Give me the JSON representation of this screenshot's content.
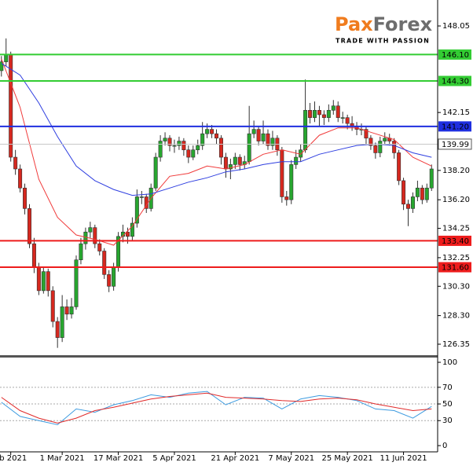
{
  "logo": {
    "brand": [
      "Pax",
      "Forex"
    ],
    "tagline": "TRADE WITH PASSION"
  },
  "chart_data": [
    {
      "type": "candlestick",
      "xlim": [
        -0.3,
        93.3
      ],
      "ylim": [
        125.6,
        149.82
      ],
      "yticks": [
        148.05,
        142.15,
        {
          "value": 138.2,
          "label": "138.20"
        },
        {
          "value": 136.2,
          "label": "136.20"
        },
        134.25,
        132.25,
        {
          "value": 130.3,
          "label": "130.30"
        },
        {
          "value": 128.3,
          "label": "128.30"
        },
        126.35
      ],
      "up_color": "#27a62f",
      "down_color": "#d6281f",
      "open": [
        145.0,
        145.6,
        146.1,
        139.1,
        138.3,
        137.0,
        135.6,
        133.2,
        131.6,
        130.0,
        131.3,
        130.0,
        127.9,
        126.8,
        128.9,
        128.4,
        128.9,
        132.1,
        133.2,
        134.0,
        134.3,
        133.2,
        132.7,
        131.1,
        130.3,
        131.6,
        133.7,
        134.0,
        133.7,
        134.6,
        136.4,
        136.4,
        135.6,
        137.0,
        139.1,
        140.2,
        140.4,
        139.9,
        139.9,
        140.2,
        139.6,
        139.1,
        139.6,
        139.9,
        140.7,
        141.0,
        140.7,
        140.4,
        139.1,
        138.3,
        138.6,
        139.1,
        138.6,
        138.8,
        140.7,
        141.0,
        140.2,
        140.7,
        139.9,
        140.4,
        139.6,
        136.4,
        136.2,
        138.6,
        139.1,
        139.6,
        142.3,
        141.8,
        142.3,
        142.0,
        141.8,
        142.3,
        142.6,
        141.8,
        141.8,
        141.4,
        141.2,
        141.0,
        141.0,
        140.4,
        139.9,
        139.4,
        140.2,
        140.4,
        140.2,
        139.4,
        137.5,
        135.9,
        135.6,
        136.4,
        137.0,
        136.2,
        137.0
      ],
      "high": [
        146.0,
        147.2,
        146.3,
        139.6,
        138.6,
        137.3,
        135.9,
        133.6,
        131.9,
        131.6,
        131.5,
        130.3,
        128.2,
        129.7,
        129.4,
        129.5,
        132.4,
        133.6,
        134.3,
        134.7,
        134.5,
        133.5,
        132.9,
        131.4,
        131.9,
        134.0,
        134.5,
        134.3,
        135.0,
        136.9,
        136.8,
        136.6,
        137.3,
        139.4,
        140.6,
        140.8,
        140.6,
        140.3,
        140.5,
        140.4,
        139.9,
        139.9,
        140.3,
        141.5,
        141.4,
        141.3,
        141.0,
        140.6,
        139.4,
        139.0,
        139.4,
        139.3,
        139.2,
        142.6,
        141.6,
        141.2,
        141.6,
        141.0,
        140.9,
        140.6,
        139.8,
        136.8,
        138.9,
        139.6,
        140.0,
        144.4,
        142.8,
        142.9,
        142.6,
        142.3,
        142.7,
        143.0,
        142.9,
        142.2,
        142.0,
        141.9,
        141.5,
        141.4,
        141.2,
        140.6,
        140.1,
        140.5,
        140.8,
        140.7,
        140.4,
        139.6,
        137.7,
        136.2,
        136.7,
        137.5,
        137.2,
        137.3,
        138.6
      ],
      "low": [
        144.6,
        145.3,
        138.8,
        137.9,
        136.7,
        135.2,
        132.9,
        131.2,
        129.7,
        129.8,
        129.6,
        127.5,
        126.1,
        126.5,
        128.0,
        128.1,
        128.7,
        131.8,
        132.8,
        133.6,
        132.9,
        132.4,
        130.8,
        129.9,
        130.0,
        131.3,
        133.3,
        133.2,
        133.4,
        134.3,
        135.9,
        135.3,
        135.4,
        136.8,
        138.8,
        139.9,
        139.5,
        139.4,
        139.6,
        139.2,
        138.7,
        138.9,
        139.3,
        139.6,
        140.4,
        140.4,
        140.0,
        138.6,
        137.7,
        137.6,
        138.3,
        138.2,
        138.3,
        138.6,
        140.4,
        139.9,
        140.0,
        139.6,
        139.6,
        139.2,
        136.0,
        135.8,
        135.9,
        138.3,
        138.8,
        139.4,
        141.4,
        141.5,
        141.2,
        141.3,
        141.5,
        142.0,
        141.5,
        141.4,
        141.0,
        140.9,
        140.6,
        140.6,
        140.0,
        139.6,
        139.0,
        139.1,
        140.0,
        139.9,
        139.0,
        137.2,
        135.5,
        134.4,
        135.3,
        136.1,
        135.9,
        136.0,
        136.8
      ],
      "close": [
        145.6,
        146.1,
        139.1,
        138.3,
        137.0,
        135.6,
        133.2,
        131.6,
        130.0,
        131.3,
        130.0,
        127.9,
        126.8,
        128.9,
        128.4,
        128.9,
        132.1,
        133.2,
        134.0,
        134.3,
        133.2,
        132.7,
        131.1,
        130.3,
        131.6,
        133.7,
        134.0,
        133.7,
        134.6,
        136.4,
        136.4,
        135.6,
        137.0,
        139.1,
        140.2,
        140.4,
        139.9,
        139.9,
        140.2,
        139.6,
        139.1,
        139.6,
        139.9,
        140.7,
        141.0,
        140.7,
        140.4,
        139.1,
        138.3,
        138.6,
        139.1,
        138.6,
        138.8,
        140.7,
        141.0,
        140.2,
        140.7,
        139.9,
        140.4,
        139.6,
        136.4,
        136.2,
        138.6,
        139.1,
        139.6,
        142.3,
        141.8,
        142.3,
        142.0,
        141.8,
        142.3,
        142.6,
        141.8,
        141.8,
        141.4,
        141.2,
        141.0,
        141.0,
        140.4,
        139.9,
        139.4,
        140.2,
        140.4,
        140.2,
        139.4,
        137.5,
        135.9,
        135.6,
        136.4,
        137.0,
        136.2,
        137.0,
        138.3
      ],
      "series": [
        {
          "color": "#f03a3a",
          "x": [
            0,
            4,
            8,
            12,
            16,
            20,
            24,
            28,
            32,
            36,
            40,
            44,
            48,
            52,
            56,
            60,
            64,
            68,
            72,
            76,
            80,
            84,
            88,
            92
          ],
          "values": [
            145.8,
            142.5,
            137.6,
            135.0,
            133.8,
            133.5,
            133.1,
            134.4,
            136.3,
            137.8,
            138.0,
            138.5,
            138.3,
            138.6,
            139.3,
            139.6,
            139.3,
            140.6,
            141.1,
            141.1,
            140.7,
            140.3,
            139.1,
            138.5
          ]
        },
        {
          "color": "#2f3fe0",
          "x": [
            0,
            4,
            8,
            12,
            16,
            20,
            24,
            28,
            32,
            36,
            40,
            44,
            48,
            52,
            56,
            60,
            64,
            68,
            72,
            76,
            80,
            84,
            88,
            92
          ],
          "values": [
            145.5,
            144.7,
            142.8,
            140.5,
            138.5,
            137.5,
            136.9,
            136.5,
            136.6,
            137.0,
            137.4,
            137.7,
            138.1,
            138.3,
            138.6,
            138.8,
            138.8,
            139.3,
            139.6,
            139.9,
            140.0,
            139.9,
            139.4,
            139.1
          ]
        }
      ],
      "levels": [
        {
          "value": 146.1,
          "label": "146.10",
          "color": "#33cc33",
          "label_color": "#000000"
        },
        {
          "value": 144.3,
          "label": "144.30",
          "color": "#33cc33",
          "label_color": "#000000"
        },
        {
          "value": 141.2,
          "label": "141.20",
          "color": "#1f2fe0",
          "label_color": "#ffffff"
        },
        {
          "value": 139.99,
          "label": "139.99",
          "color": "#c8c8c8",
          "label_color": "#000000"
        },
        {
          "value": 133.4,
          "label": "133.40",
          "color": "#ee1c1c",
          "label_color": "#000000"
        },
        {
          "value": 131.6,
          "label": "131.60",
          "color": "#ee1c1c",
          "label_color": "#000000"
        }
      ]
    },
    {
      "type": "line",
      "xlim": [
        -0.3,
        93.3
      ],
      "ylim": [
        -7.5,
        105.7
      ],
      "yticks": [
        100,
        70,
        50,
        30,
        0
      ],
      "grid": [
        70,
        50,
        30
      ],
      "xticks": [
        {
          "value": 2,
          "label": "eb 2021"
        },
        {
          "value": 13,
          "label": "1 Mar 2021"
        },
        {
          "value": 25,
          "label": "17 Mar 2021"
        },
        {
          "value": 37,
          "label": "5 Apr 2021"
        },
        {
          "value": 50,
          "label": "21 Apr 2021"
        },
        {
          "value": 62,
          "label": "7 May 2021"
        },
        {
          "value": 74,
          "label": "25 May 2021"
        },
        {
          "value": 86,
          "label": "11 Jun 2021"
        }
      ],
      "series": [
        {
          "color": "#3d9be0",
          "x": [
            0,
            4,
            8,
            12,
            16,
            20,
            24,
            28,
            32,
            36,
            40,
            44,
            48,
            52,
            56,
            60,
            64,
            68,
            72,
            76,
            80,
            84,
            88,
            92
          ],
          "values": [
            52,
            35,
            30,
            25,
            44,
            40,
            49,
            54,
            61,
            58,
            63,
            65,
            49,
            58,
            57,
            44,
            56,
            60,
            58,
            54,
            44,
            42,
            33,
            47
          ]
        },
        {
          "color": "#e02a2a",
          "x": [
            0,
            4,
            8,
            12,
            16,
            20,
            24,
            28,
            32,
            36,
            40,
            44,
            48,
            52,
            56,
            60,
            64,
            68,
            72,
            76,
            80,
            84,
            88,
            92
          ],
          "values": [
            58,
            42,
            33,
            27,
            33,
            42,
            46,
            51,
            56,
            59,
            61,
            63,
            58,
            57,
            56,
            54,
            53,
            56,
            57,
            55,
            50,
            46,
            42,
            44
          ]
        }
      ]
    }
  ]
}
